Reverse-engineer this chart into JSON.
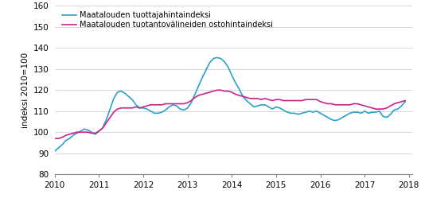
{
  "title": "",
  "ylabel": "indeksi 2010=100",
  "ylim": [
    80,
    160
  ],
  "yticks": [
    80,
    90,
    100,
    110,
    120,
    130,
    140,
    150,
    160
  ],
  "xlim_start": 2010.0,
  "xlim_end": 2018.083,
  "xtick_labels": [
    "2010",
    "2011",
    "2012",
    "2013",
    "2014",
    "2015",
    "2016",
    "2017",
    "2018"
  ],
  "line1_color": "#2aa0cc",
  "line2_color": "#cc2288",
  "line1_label": "Maatalouden tuottajahintaindeksi",
  "line2_label": "Maatalouden tuotantovälineiden ostohintaindeksi",
  "line_width": 1.2,
  "background_color": "#ffffff",
  "grid_color": "#d0d0d0",
  "producer_index": [
    91.0,
    92.5,
    94.0,
    96.0,
    97.0,
    98.5,
    99.5,
    100.5,
    101.5,
    101.0,
    100.0,
    99.0,
    100.5,
    102.0,
    106.0,
    111.0,
    116.0,
    119.0,
    119.5,
    118.5,
    117.0,
    115.5,
    113.0,
    111.5,
    111.5,
    111.0,
    110.0,
    109.0,
    109.0,
    109.5,
    110.5,
    112.0,
    113.0,
    112.5,
    111.0,
    110.5,
    111.5,
    114.0,
    118.0,
    122.0,
    126.0,
    129.5,
    133.0,
    135.0,
    135.5,
    135.0,
    133.5,
    131.0,
    127.0,
    123.5,
    120.5,
    117.0,
    115.0,
    113.5,
    112.0,
    112.5,
    113.0,
    113.0,
    112.0,
    111.0,
    112.0,
    111.5,
    110.5,
    109.5,
    109.0,
    109.0,
    108.5,
    109.0,
    109.5,
    110.0,
    109.5,
    110.0,
    109.0,
    108.0,
    107.0,
    106.0,
    105.5,
    106.0,
    107.0,
    108.0,
    109.0,
    109.5,
    109.5,
    109.0,
    110.0,
    109.0,
    109.5,
    109.5,
    110.0,
    107.5,
    107.0,
    108.5,
    110.5,
    111.0,
    112.5,
    114.5
  ],
  "input_index": [
    97.0,
    97.0,
    97.5,
    98.5,
    99.0,
    99.5,
    100.0,
    100.0,
    100.0,
    100.0,
    99.5,
    99.5,
    100.5,
    102.0,
    104.5,
    107.0,
    109.5,
    111.0,
    111.5,
    111.5,
    111.5,
    111.5,
    112.0,
    111.5,
    112.0,
    112.5,
    113.0,
    113.0,
    113.0,
    113.0,
    113.5,
    113.5,
    113.5,
    113.5,
    113.5,
    113.5,
    114.0,
    115.0,
    116.5,
    117.5,
    118.0,
    118.5,
    119.0,
    119.5,
    120.0,
    120.0,
    119.5,
    119.5,
    119.0,
    118.0,
    117.5,
    117.0,
    116.5,
    116.0,
    116.0,
    116.0,
    115.5,
    116.0,
    115.5,
    115.0,
    115.5,
    115.5,
    115.0,
    115.0,
    115.0,
    115.0,
    115.0,
    115.0,
    115.5,
    115.5,
    115.5,
    115.5,
    114.5,
    114.0,
    113.5,
    113.5,
    113.0,
    113.0,
    113.0,
    113.0,
    113.0,
    113.5,
    113.5,
    113.0,
    112.5,
    112.0,
    111.5,
    111.0,
    111.0,
    111.0,
    111.5,
    112.5,
    113.5,
    114.0,
    114.5,
    115.0
  ]
}
